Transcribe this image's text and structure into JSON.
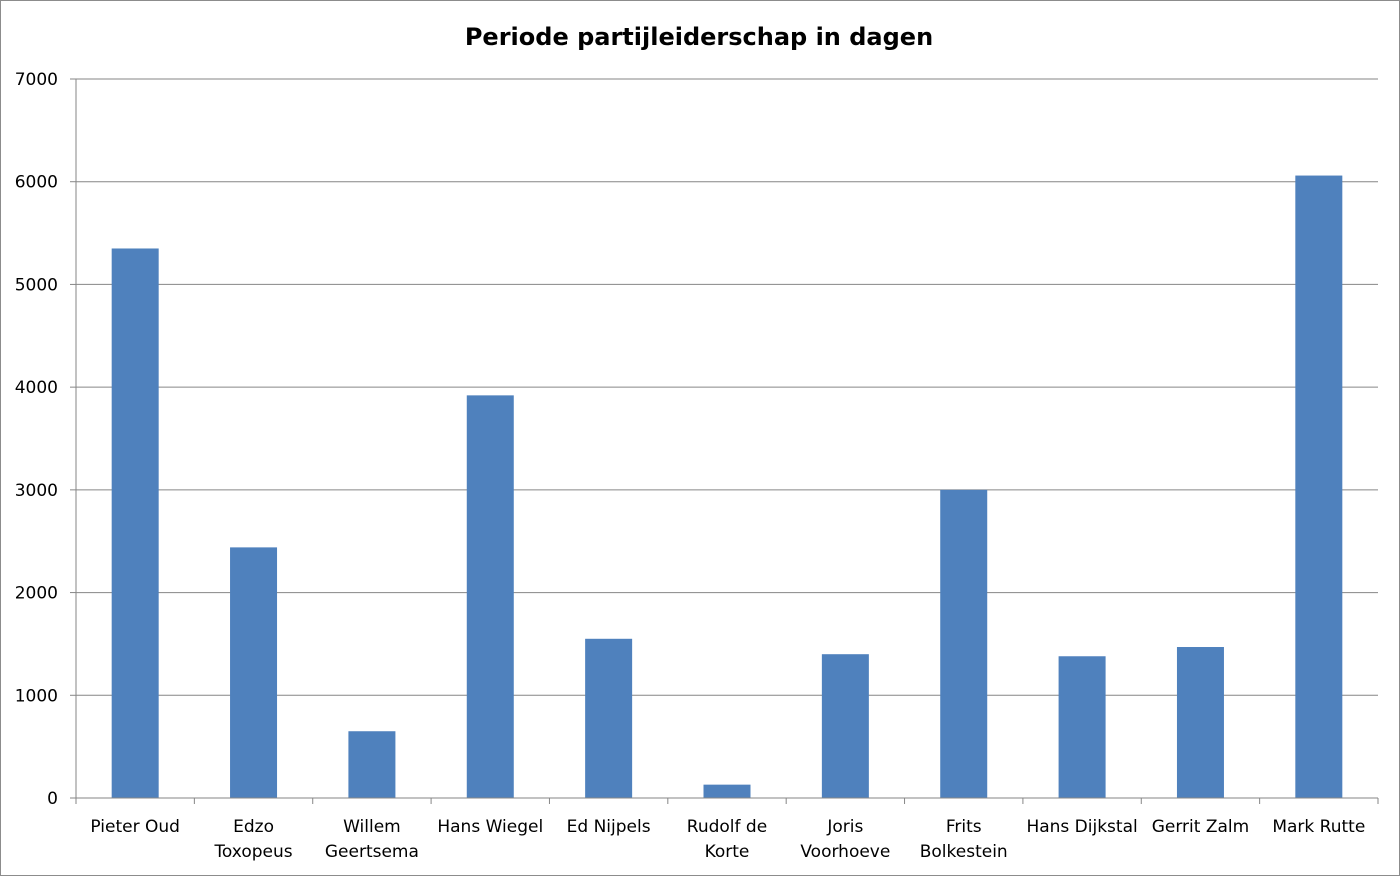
{
  "chart_data": {
    "type": "bar",
    "title": "Periode partijleiderschap in dagen",
    "xlabel": "",
    "ylabel": "",
    "ylim": [
      0,
      7000
    ],
    "yticks": [
      0,
      1000,
      2000,
      3000,
      4000,
      5000,
      6000,
      7000
    ],
    "grid": true,
    "legend": "none",
    "bar_color": "#4f81bd",
    "grid_color": "#868686",
    "categories": [
      [
        "Pieter Oud"
      ],
      [
        "Edzo",
        "Toxopeus"
      ],
      [
        "Willem",
        "Geertsema"
      ],
      [
        "Hans Wiegel"
      ],
      [
        "Ed Nijpels"
      ],
      [
        "Rudolf de",
        "Korte"
      ],
      [
        "Joris",
        "Voorhoeve"
      ],
      [
        "Frits",
        "Bolkestein"
      ],
      [
        "Hans Dijkstal"
      ],
      [
        "Gerrit Zalm"
      ],
      [
        "Mark Rutte"
      ]
    ],
    "values": [
      5350,
      2440,
      650,
      3920,
      1550,
      130,
      1400,
      3000,
      1380,
      1470,
      6060
    ]
  }
}
